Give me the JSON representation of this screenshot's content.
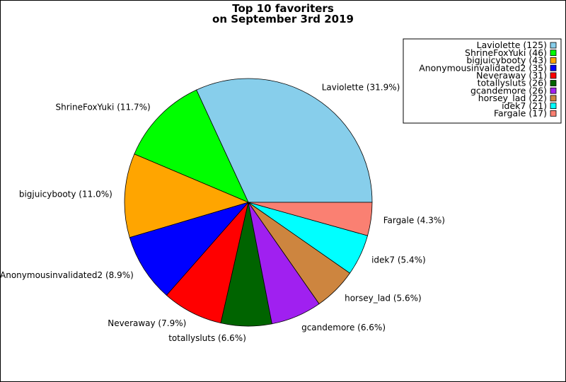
{
  "chart_data": {
    "type": "pie",
    "title": [
      "Top 10 favoriters",
      "on September 3rd 2019"
    ],
    "legend_position": "top-right",
    "start_angle_deg": 0,
    "direction": "counterclockwise",
    "slices": [
      {
        "name": "Laviolette",
        "value": 125,
        "percent_label": "Laviolette (31.9%)",
        "legend_label": "Laviolette (125)",
        "color": "#87ceeb"
      },
      {
        "name": "ShrineFoxYuki",
        "value": 46,
        "percent_label": "ShrineFoxYuki (11.7%)",
        "legend_label": "ShrineFoxYuki (46)",
        "color": "#00ff00"
      },
      {
        "name": "bigjuicybooty",
        "value": 43,
        "percent_label": "bigjuicybooty (11.0%)",
        "legend_label": "bigjuicybooty (43)",
        "color": "#ffa500"
      },
      {
        "name": "Anonymousinvalidated2",
        "value": 35,
        "percent_label": "Anonymousinvalidated2 (8.9%)",
        "legend_label": "Anonymousinvalidated2 (35)",
        "color": "#0000ff"
      },
      {
        "name": "Neveraway",
        "value": 31,
        "percent_label": "Neveraway (7.9%)",
        "legend_label": "Neveraway (31)",
        "color": "#ff0000"
      },
      {
        "name": "totallysluts",
        "value": 26,
        "percent_label": "totallysluts (6.6%)",
        "legend_label": "totallysluts (26)",
        "color": "#006400"
      },
      {
        "name": "gcandemore",
        "value": 26,
        "percent_label": "gcandemore (6.6%)",
        "legend_label": "gcandemore (26)",
        "color": "#a020f0"
      },
      {
        "name": "horsey_lad",
        "value": 22,
        "percent_label": "horsey_lad (5.6%)",
        "legend_label": "horsey_lad (22)",
        "color": "#cd853f"
      },
      {
        "name": "idek7",
        "value": 21,
        "percent_label": "idek7 (5.4%)",
        "legend_label": "idek7 (21)",
        "color": "#00ffff"
      },
      {
        "name": "Fargale",
        "value": 17,
        "percent_label": "Fargale (4.3%)",
        "legend_label": "Fargale (17)",
        "color": "#fa8072"
      }
    ]
  }
}
